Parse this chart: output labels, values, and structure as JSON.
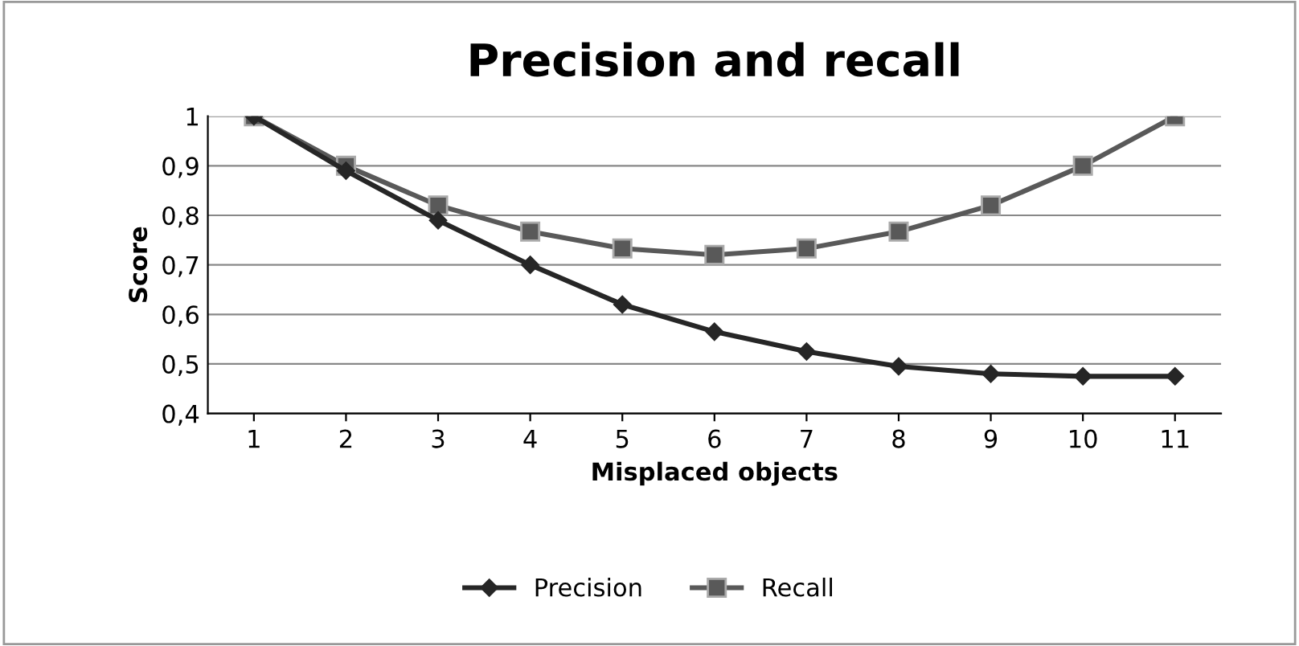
{
  "chart_data": {
    "type": "line",
    "title": "Precision and recall",
    "xlabel": "Misplaced objects",
    "ylabel": "Score",
    "categories": [
      "1",
      "2",
      "3",
      "4",
      "5",
      "6",
      "7",
      "8",
      "9",
      "10",
      "11"
    ],
    "series": [
      {
        "name": "Precision",
        "color": "#262626",
        "marker": "diamond",
        "values": [
          1,
          0.89,
          0.79,
          0.7,
          0.62,
          0.565,
          0.525,
          0.495,
          0.48,
          0.475,
          0.475
        ]
      },
      {
        "name": "Recall",
        "color": "#595959",
        "marker": "square",
        "values": [
          1,
          0.9,
          0.82,
          0.767,
          0.733,
          0.72,
          0.733,
          0.767,
          0.82,
          0.9,
          1
        ]
      }
    ],
    "ylim": [
      0.4,
      1
    ],
    "yticks": [
      {
        "value": 0.4,
        "label": "0,4"
      },
      {
        "value": 0.5,
        "label": "0,5"
      },
      {
        "value": 0.6,
        "label": "0,6"
      },
      {
        "value": 0.7,
        "label": "0,7"
      },
      {
        "value": 0.8,
        "label": "0,8"
      },
      {
        "value": 0.9,
        "label": "0,9"
      },
      1
    ],
    "grid": "y",
    "legend": "bottom",
    "line_style": "solid"
  }
}
